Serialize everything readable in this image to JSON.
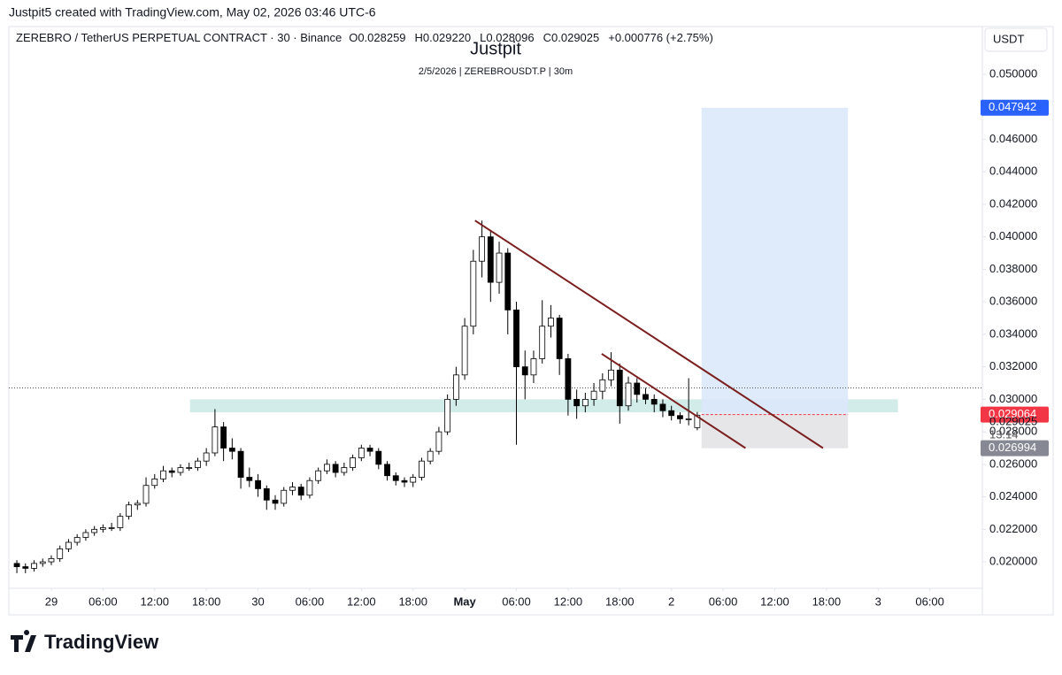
{
  "header": "Justpit5 created with TradingView.com, May 02, 2026 03:46 UTC-6",
  "logo": "TradingView",
  "chart_data": {
    "type": "candlestick",
    "symbol": "ZEREBRO / TetherUS PERPETUAL CONTRACT · 30 · Binance",
    "legend_values": [
      "O0.028259",
      "H0.029220",
      "L0.028096",
      "C0.029025",
      "+0.000776 (+2.75%)"
    ],
    "title": "Justpit",
    "subtitle": "2/5/2026 | ZEREBROUSDT.P | 30m",
    "currency": "USDT",
    "up_color": "#ffffff",
    "down_color": "#000000",
    "outline_color": "#000000",
    "x": [
      -4,
      -3,
      -2,
      -1,
      0,
      1,
      2,
      3,
      4,
      5,
      6,
      7,
      8,
      9,
      10,
      11,
      12,
      13,
      14,
      15,
      16,
      17,
      18,
      19,
      20,
      21,
      22,
      23,
      24,
      25,
      26,
      27,
      28,
      29,
      30,
      31,
      32,
      33,
      34,
      35,
      36,
      37,
      38,
      39,
      40,
      41,
      42,
      43,
      44,
      45,
      46,
      47,
      48,
      49,
      50,
      51,
      52,
      53,
      54,
      55,
      56,
      57,
      58,
      59,
      60,
      61,
      62,
      63,
      64,
      65,
      66,
      67,
      68,
      69,
      70,
      71,
      72,
      73,
      74,
      75
    ],
    "open": [
      0.0199,
      0.0197,
      0.0196,
      0.0199,
      0.02,
      0.0202,
      0.0208,
      0.0212,
      0.0215,
      0.0218,
      0.022,
      0.0221,
      0.0221,
      0.0228,
      0.0235,
      0.0236,
      0.0247,
      0.0251,
      0.0256,
      0.0255,
      0.0258,
      0.0258,
      0.0262,
      0.0267,
      0.0283,
      0.027,
      0.0268,
      0.0252,
      0.025,
      0.0245,
      0.0238,
      0.0236,
      0.0244,
      0.0246,
      0.0241,
      0.025,
      0.0256,
      0.026,
      0.0255,
      0.0258,
      0.0264,
      0.027,
      0.0268,
      0.026,
      0.0253,
      0.025,
      0.0249,
      0.0252,
      0.0262,
      0.0268,
      0.028,
      0.03,
      0.0315,
      0.0345,
      0.0385,
      0.04,
      0.0372,
      0.039,
      0.0355,
      0.032,
      0.0315,
      0.0325,
      0.0345,
      0.035,
      0.0325,
      0.03,
      0.0296,
      0.03,
      0.0305,
      0.0312,
      0.0318,
      0.0296,
      0.031,
      0.0303,
      0.03,
      0.0297,
      0.0293,
      0.029,
      0.0288,
      0.028259
    ],
    "high": [
      0.0201,
      0.0199,
      0.0201,
      0.0202,
      0.0204,
      0.021,
      0.0214,
      0.0217,
      0.022,
      0.0222,
      0.0223,
      0.0224,
      0.023,
      0.0237,
      0.0238,
      0.0252,
      0.0254,
      0.0259,
      0.0258,
      0.026,
      0.0261,
      0.0264,
      0.027,
      0.0294,
      0.0286,
      0.0276,
      0.027,
      0.0258,
      0.0254,
      0.0247,
      0.0241,
      0.0246,
      0.0249,
      0.0248,
      0.0252,
      0.0258,
      0.0263,
      0.0262,
      0.0261,
      0.0266,
      0.0272,
      0.0272,
      0.027,
      0.0262,
      0.0255,
      0.0252,
      0.0254,
      0.0264,
      0.027,
      0.0283,
      0.0303,
      0.032,
      0.035,
      0.0392,
      0.041,
      0.0404,
      0.0397,
      0.0393,
      0.036,
      0.033,
      0.033,
      0.0361,
      0.0358,
      0.0352,
      0.0328,
      0.0306,
      0.0304,
      0.031,
      0.0316,
      0.0329,
      0.0322,
      0.0314,
      0.0313,
      0.0307,
      0.0303,
      0.03,
      0.0296,
      0.0292,
      0.0313,
      0.02922
    ],
    "low": [
      0.0193,
      0.0193,
      0.0194,
      0.0197,
      0.0198,
      0.02,
      0.0206,
      0.021,
      0.0213,
      0.0216,
      0.0218,
      0.0219,
      0.0219,
      0.0226,
      0.0232,
      0.0234,
      0.0245,
      0.0249,
      0.0252,
      0.0253,
      0.0256,
      0.0256,
      0.0259,
      0.0265,
      0.0262,
      0.0263,
      0.0245,
      0.0246,
      0.024,
      0.0232,
      0.0232,
      0.0234,
      0.0241,
      0.0238,
      0.0239,
      0.0248,
      0.0254,
      0.0252,
      0.0253,
      0.0256,
      0.0262,
      0.0265,
      0.0257,
      0.025,
      0.0247,
      0.0246,
      0.0246,
      0.025,
      0.026,
      0.0266,
      0.0278,
      0.0296,
      0.0312,
      0.034,
      0.0375,
      0.036,
      0.0365,
      0.034,
      0.0272,
      0.03,
      0.031,
      0.0322,
      0.0338,
      0.0315,
      0.029,
      0.0288,
      0.0292,
      0.0296,
      0.03,
      0.0308,
      0.0285,
      0.0293,
      0.0298,
      0.0297,
      0.0292,
      0.0289,
      0.0287,
      0.0285,
      0.0284,
      0.028096
    ],
    "close": [
      0.0197,
      0.0196,
      0.0199,
      0.02,
      0.0202,
      0.0208,
      0.0212,
      0.0215,
      0.0218,
      0.022,
      0.0221,
      0.0221,
      0.0228,
      0.0235,
      0.0236,
      0.0247,
      0.0251,
      0.0256,
      0.0255,
      0.0258,
      0.0258,
      0.0262,
      0.0267,
      0.0283,
      0.027,
      0.0268,
      0.0252,
      0.025,
      0.0245,
      0.0238,
      0.0236,
      0.0244,
      0.0246,
      0.0241,
      0.025,
      0.0256,
      0.026,
      0.0255,
      0.0258,
      0.0264,
      0.027,
      0.0268,
      0.026,
      0.0253,
      0.025,
      0.0249,
      0.0252,
      0.0262,
      0.0268,
      0.028,
      0.03,
      0.0315,
      0.0345,
      0.0385,
      0.04,
      0.0372,
      0.039,
      0.0355,
      0.032,
      0.0315,
      0.0325,
      0.0345,
      0.035,
      0.0325,
      0.03,
      0.0296,
      0.03,
      0.0305,
      0.0312,
      0.0318,
      0.0296,
      0.031,
      0.0303,
      0.03,
      0.0297,
      0.0293,
      0.029,
      0.0288,
      0.0288,
      0.029025
    ],
    "xlim": [
      -4.93,
      108.1
    ],
    "ylim": [
      0.01837,
      0.05294
    ],
    "xticks": [
      {
        "value": 0,
        "label": "29"
      },
      {
        "value": 6,
        "label": "06:00"
      },
      {
        "value": 12,
        "label": "12:00"
      },
      {
        "value": 18,
        "label": "18:00"
      },
      {
        "value": 24,
        "label": "30"
      },
      {
        "value": 30,
        "label": "06:00"
      },
      {
        "value": 36,
        "label": "12:00"
      },
      {
        "value": 42,
        "label": "18:00"
      },
      {
        "value": 48,
        "label": "May"
      },
      {
        "value": 54,
        "label": "06:00"
      },
      {
        "value": 60,
        "label": "12:00"
      },
      {
        "value": 66,
        "label": "18:00"
      },
      {
        "value": 72,
        "label": "2"
      },
      {
        "value": 78,
        "label": "06:00"
      },
      {
        "value": 84,
        "label": "12:00"
      },
      {
        "value": 90,
        "label": "18:00"
      },
      {
        "value": 96,
        "label": "3"
      },
      {
        "value": 102,
        "label": "06:00"
      }
    ],
    "yticks": [
      {
        "value": 0.02,
        "label": "0.020000"
      },
      {
        "value": 0.022,
        "label": "0.022000"
      },
      {
        "value": 0.024,
        "label": "0.024000"
      },
      {
        "value": 0.026,
        "label": "0.026000"
      },
      {
        "value": 0.028,
        "label": "0.028000"
      },
      {
        "value": 0.03,
        "label": "0.030000"
      },
      {
        "value": 0.032,
        "label": "0.032000"
      },
      {
        "value": 0.034,
        "label": "0.034000"
      },
      {
        "value": 0.036,
        "label": "0.036000"
      },
      {
        "value": 0.038,
        "label": "0.038000"
      },
      {
        "value": 0.04,
        "label": "0.040000"
      },
      {
        "value": 0.042,
        "label": "0.042000"
      },
      {
        "value": 0.044,
        "label": "0.044000"
      },
      {
        "value": 0.046,
        "label": "0.046000"
      },
      {
        "value": 0.048,
        "label": "0.048000"
      },
      {
        "value": 0.05,
        "label": "0.050000"
      }
    ],
    "zone": {
      "x": [
        16.1,
        98.3
      ],
      "y": [
        0.0292,
        0.03
      ],
      "color": "#b2dfdb"
    },
    "position": {
      "x": [
        75.5,
        92.5
      ],
      "target": 0.047942,
      "entry": 0.029064,
      "stop": 0.026994,
      "profit_color": "#dbe8fb",
      "loss_color": "#e6e6e8"
    },
    "trendlines": [
      {
        "x": [
          49.2,
          89.6
        ],
        "y": [
          0.041,
          0.027
        ],
        "color": "#7b1f1f"
      },
      {
        "x": [
          63.9,
          80.6
        ],
        "y": [
          0.0328,
          0.027
        ],
        "color": "#7b1f1f"
      }
    ],
    "price_line": 0.0307,
    "price_tags": [
      {
        "value": 0.047942,
        "color": "#2962ff"
      },
      {
        "value": 0.029064,
        "color": "#f23645"
      },
      {
        "value": 0.026994,
        "color": "#868993"
      }
    ],
    "last_price": 0.029025,
    "countdown": "13:14"
  }
}
